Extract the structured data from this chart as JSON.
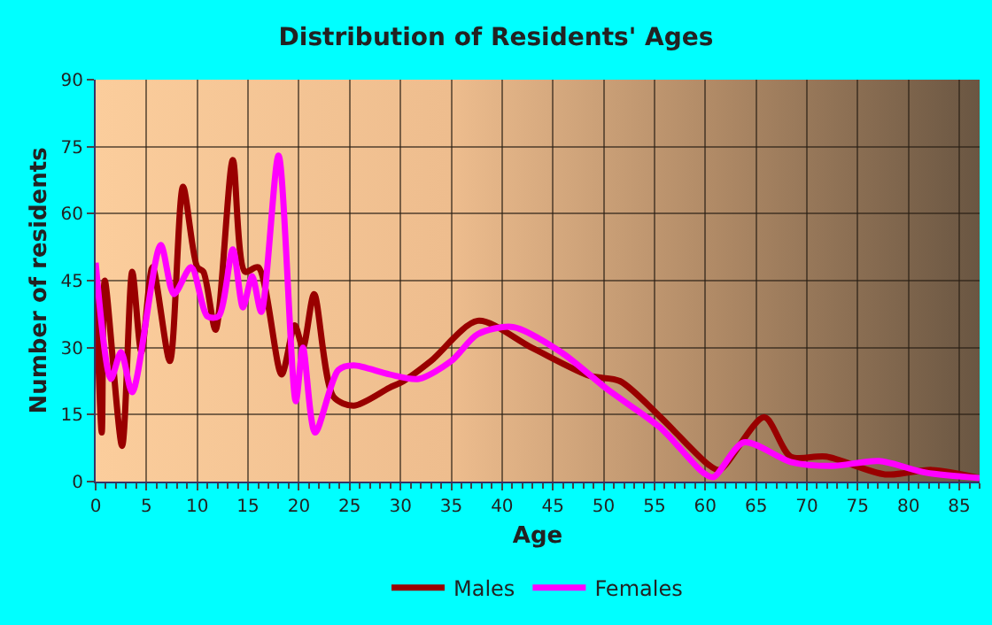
{
  "chart_data": {
    "type": "line",
    "title": "Distribution of Residents' Ages",
    "xlabel": "Age",
    "ylabel": "Number of residents",
    "xlim": [
      0,
      87
    ],
    "xticks": [
      0,
      5,
      10,
      15,
      20,
      25,
      30,
      35,
      40,
      45,
      50,
      55,
      60,
      65,
      70,
      75,
      80,
      85
    ],
    "ylim": [
      0,
      90
    ],
    "yticks": [
      0,
      15,
      30,
      45,
      60,
      75,
      90
    ],
    "grid": true,
    "legend": "bottom",
    "marker": "none",
    "line_style": "solid",
    "series": [
      {
        "name": "Males",
        "color": "#990000",
        "x": [
          0,
          0.6,
          0.9,
          2.6,
          3.6,
          4.5,
          5.6,
          7.3,
          8.6,
          10,
          10.6,
          11.8,
          13.5,
          14.7,
          16,
          18.3,
          19.6,
          20.4,
          21.5,
          23.4,
          25.4,
          28.9,
          30.3,
          33,
          37.6,
          42.9,
          48.6,
          51.6,
          55.6,
          60.3,
          61.4,
          65.8,
          68.4,
          71.9,
          77.7,
          82.3,
          87
        ],
        "values": [
          45,
          11,
          45,
          8,
          47,
          29,
          48,
          27,
          66,
          48,
          47,
          34,
          72,
          47,
          48,
          24,
          35,
          30,
          42,
          19,
          17,
          21,
          22.5,
          27,
          36,
          30,
          23.7,
          22.5,
          14.4,
          3.8,
          2.6,
          14.4,
          5.6,
          5.6,
          1.6,
          2.6,
          0.8
        ]
      },
      {
        "name": "Females",
        "color": "#ff00ff",
        "x": [
          0,
          1.5,
          2.5,
          3.6,
          6.4,
          7.7,
          9.4,
          11,
          12.1,
          13.5,
          14.5,
          15.4,
          16.3,
          18,
          19.7,
          20.4,
          21.6,
          23.9,
          25.4,
          28.9,
          31.8,
          35,
          37.6,
          41.1,
          45.8,
          50.4,
          55.6,
          59.8,
          60.8,
          63.8,
          68.4,
          72.5,
          77.1,
          81.7,
          87
        ],
        "values": [
          49,
          23,
          29,
          20,
          53,
          42,
          48,
          37,
          37,
          52,
          39,
          46,
          38,
          73,
          18,
          30,
          11,
          25,
          26,
          24,
          23,
          27,
          33,
          34.6,
          29,
          20.6,
          12,
          2,
          1,
          8.8,
          4.4,
          3.5,
          4.6,
          2,
          0.8
        ]
      }
    ]
  }
}
